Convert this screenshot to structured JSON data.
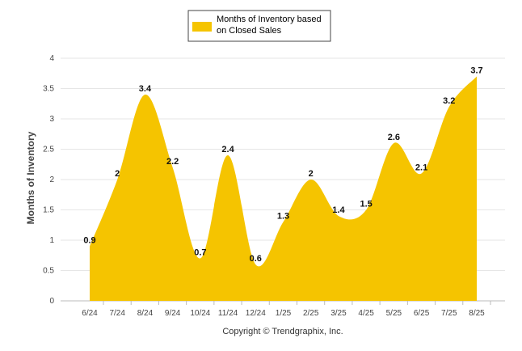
{
  "chart_data": {
    "type": "area",
    "categories": [
      "6/24",
      "7/24",
      "8/24",
      "9/24",
      "10/24",
      "11/24",
      "12/24",
      "1/25",
      "2/25",
      "3/25",
      "4/25",
      "5/25",
      "6/25",
      "7/25",
      "8/25"
    ],
    "series": [
      {
        "name": "Months of Inventory based on Closed Sales",
        "values": [
          0.9,
          2,
          3.4,
          2.2,
          0.7,
          2.4,
          0.6,
          1.3,
          2,
          1.4,
          1.5,
          2.6,
          2.1,
          3.2,
          3.7
        ],
        "color": "#F5C400"
      }
    ],
    "value_labels": [
      "0.9",
      "2",
      "3.4",
      "2.2",
      "0.7",
      "2.4",
      "0.6",
      "1.3",
      "2",
      "1.4",
      "1.5",
      "2.6",
      "2.1",
      "3.2",
      "3.7"
    ],
    "ylabel": "Months of Inventory",
    "xlabel": "",
    "ylim": [
      0,
      4
    ],
    "yticks": [
      "0",
      "0.5",
      "1",
      "1.5",
      "2",
      "2.5",
      "3",
      "3.5",
      "4"
    ],
    "grid": true,
    "legend_position": "top-center"
  },
  "legend": {
    "line1": "Months of Inventory based",
    "line2": "on Closed Sales"
  },
  "credit": "Copyright © Trendgraphix, Inc."
}
